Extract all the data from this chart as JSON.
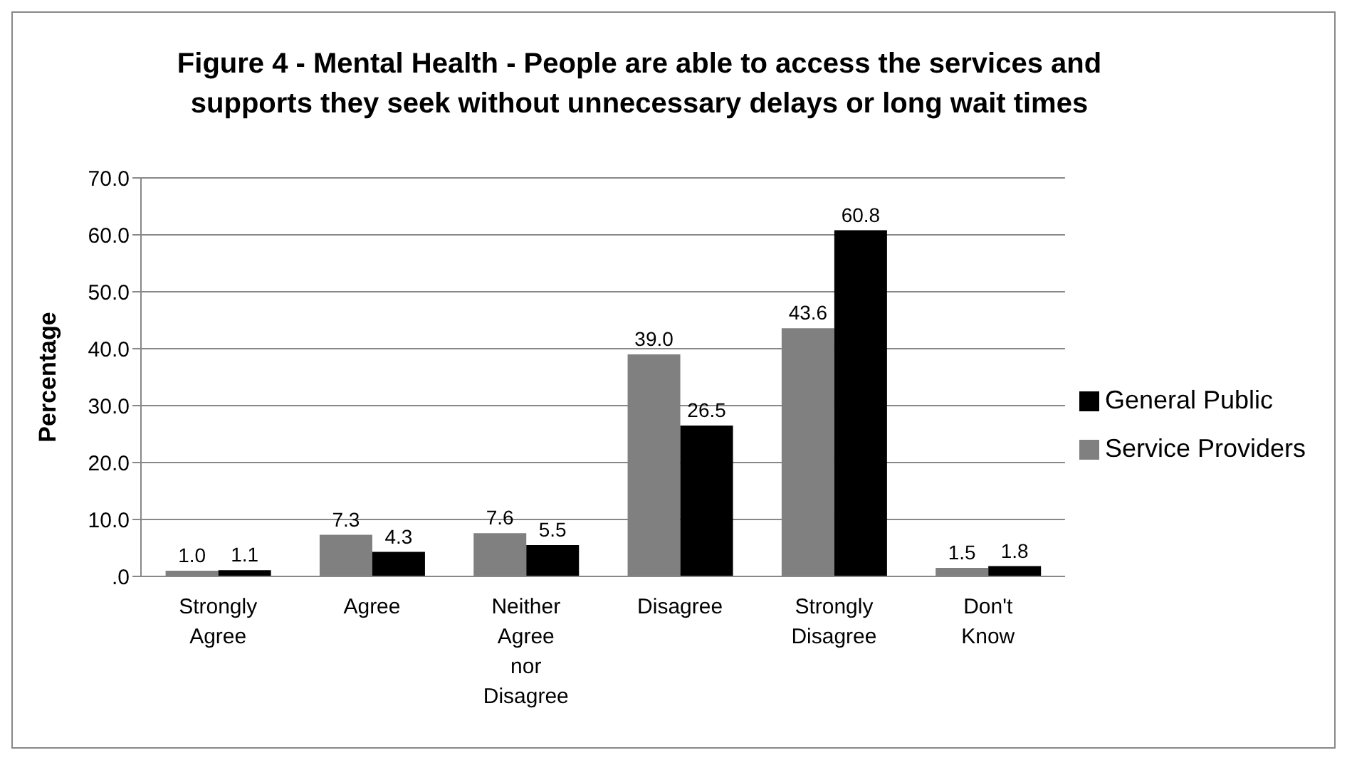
{
  "chart_data": {
    "type": "bar",
    "title": "Figure 4 - Mental Health - People are able to access the services and supports they seek without unnecessary delays or long wait times",
    "ylabel": "Percentage",
    "categories": [
      "Strongly Agree",
      "Agree",
      "Neither Agree nor Disagree",
      "Disagree",
      "Strongly Disagree",
      "Don't Know"
    ],
    "series": [
      {
        "name": "Service Providers",
        "color": "#808080",
        "values": [
          1.0,
          7.3,
          7.6,
          39.0,
          43.6,
          1.5
        ],
        "value_labels": [
          "1.0",
          "7.3",
          "7.6",
          "39.0",
          "43.6",
          "1.5"
        ]
      },
      {
        "name": "General Public",
        "color": "#000000",
        "values": [
          1.1,
          4.3,
          5.5,
          26.5,
          60.8,
          1.8
        ],
        "value_labels": [
          "1.1",
          "4.3",
          "5.5",
          "26.5",
          "60.8",
          "1.8"
        ]
      }
    ],
    "ylim": [
      0,
      70
    ],
    "yticks": [
      {
        "value": 0,
        "label": ".0"
      },
      {
        "value": 10,
        "label": "10.0"
      },
      {
        "value": 20,
        "label": "20.0"
      },
      {
        "value": 30,
        "label": "30.0"
      },
      {
        "value": 40,
        "label": "40.0"
      },
      {
        "value": 50,
        "label": "50.0"
      },
      {
        "value": 60,
        "label": "60.0"
      },
      {
        "value": 70,
        "label": "70.0"
      }
    ],
    "grid": "y",
    "legend": "right"
  }
}
